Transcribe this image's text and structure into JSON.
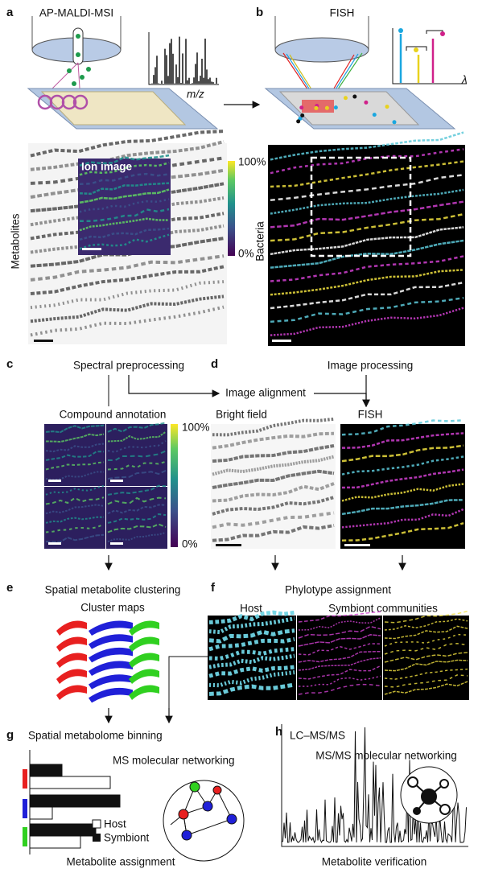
{
  "panel_a": {
    "label": "a",
    "title": "AP-MALDI-MSI",
    "axis": "m/z",
    "inset": "Ion image",
    "scale_max": "100%",
    "scale_min": "0%",
    "side_label": "Metabolites"
  },
  "panel_b": {
    "label": "b",
    "title": "FISH",
    "axis": "λ",
    "side_label": "Bacteria"
  },
  "panel_c": {
    "label": "c",
    "title": "Spectral preprocessing",
    "subtitle": "Compound annotation",
    "scale_max": "100%",
    "scale_min": "0%"
  },
  "panel_d": {
    "label": "d",
    "title": "Image processing",
    "middle": "Image alignment",
    "left": "Bright field",
    "right": "FISH"
  },
  "panel_e": {
    "label": "e",
    "title": "Spatial metabolite clustering",
    "subtitle": "Cluster maps"
  },
  "panel_f": {
    "label": "f",
    "title": "Phylotype assignment",
    "left": "Host",
    "right": "Symbiont communities"
  },
  "panel_g": {
    "label": "g",
    "title": "Spatial metabolome binning",
    "network": "MS molecular networking",
    "legend": [
      "Host",
      "Symbiont"
    ],
    "footer": "Metabolite assignment"
  },
  "panel_h": {
    "label": "h",
    "title": "LC–MS/MS",
    "network": "MS/MS molecular networking",
    "footer": "Metabolite verification"
  }
}
